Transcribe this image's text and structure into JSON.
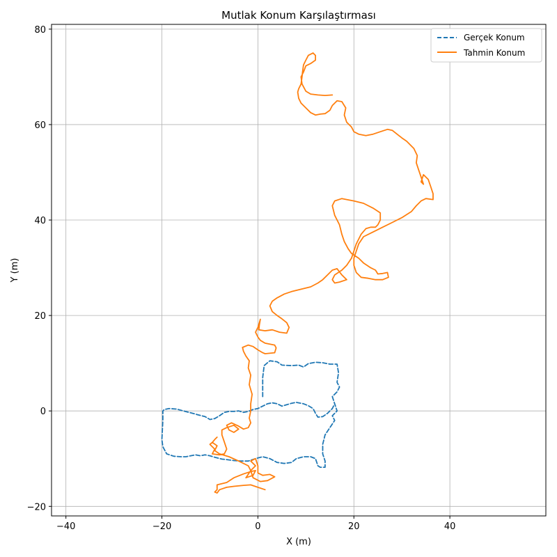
{
  "chart_data": {
    "type": "line",
    "title": "Mutlak Konum Karşılaştırması",
    "xlabel": "X (m)",
    "ylabel": "Y (m)",
    "xlim": [
      -43,
      60
    ],
    "ylim": [
      -22,
      81
    ],
    "xticks": [
      -40,
      -20,
      0,
      20,
      40
    ],
    "yticks": [
      -20,
      0,
      20,
      40,
      60,
      80
    ],
    "xtick_labels": [
      "−40",
      "−20",
      "0",
      "20",
      "40"
    ],
    "ytick_labels": [
      "−20",
      "0",
      "20",
      "40",
      "60",
      "80"
    ],
    "grid": true,
    "legend_position": "top-right",
    "series": [
      {
        "name": "Gerçek Konum",
        "color": "#1f77b4",
        "style": "dashed",
        "points": [
          [
            1,
            3
          ],
          [
            1,
            7
          ],
          [
            1.3,
            9.5
          ],
          [
            2.5,
            10.5
          ],
          [
            4,
            10.3
          ],
          [
            5,
            9.6
          ],
          [
            7,
            9.5
          ],
          [
            8.5,
            9.6
          ],
          [
            9.5,
            9.2
          ],
          [
            10.5,
            9.9
          ],
          [
            12,
            10.2
          ],
          [
            13.5,
            10.1
          ],
          [
            15,
            9.8
          ],
          [
            16.5,
            9.8
          ],
          [
            16.8,
            8
          ],
          [
            16.5,
            6
          ],
          [
            17,
            5
          ],
          [
            16.5,
            4
          ],
          [
            15.5,
            3
          ],
          [
            16,
            1.5
          ],
          [
            16.5,
            0
          ],
          [
            15.5,
            -1
          ],
          [
            16,
            -2
          ],
          [
            15,
            -3.5
          ],
          [
            14,
            -5
          ],
          [
            13.5,
            -7
          ],
          [
            13.5,
            -9
          ],
          [
            14,
            -10.5
          ],
          [
            14,
            -11.8
          ],
          [
            13,
            -11.8
          ],
          [
            12.5,
            -11.5
          ],
          [
            12,
            -10
          ],
          [
            11,
            -9.6
          ],
          [
            9.5,
            -9.6
          ],
          [
            8,
            -10
          ],
          [
            7,
            -10.8
          ],
          [
            5.5,
            -11
          ],
          [
            4,
            -10.8
          ],
          [
            2.5,
            -10
          ],
          [
            1,
            -9.6
          ],
          [
            -0.5,
            -10
          ],
          [
            -2,
            -10.5
          ],
          [
            -3.5,
            -10.5
          ],
          [
            -5,
            -10.4
          ],
          [
            -6.5,
            -10.2
          ],
          [
            -7.5,
            -10.1
          ],
          [
            -9,
            -9.7
          ],
          [
            -10,
            -9.4
          ],
          [
            -11,
            -9.2
          ],
          [
            -12,
            -9.4
          ],
          [
            -13,
            -9.2
          ],
          [
            -14,
            -9.4
          ],
          [
            -15,
            -9.6
          ],
          [
            -16,
            -9.6
          ],
          [
            -17.5,
            -9.5
          ],
          [
            -19,
            -9
          ],
          [
            -19.8,
            -7.5
          ],
          [
            -20,
            -6
          ],
          [
            -19.9,
            -4
          ],
          [
            -19.8,
            -2
          ],
          [
            -19.8,
            0
          ],
          [
            -19.5,
            0.3
          ],
          [
            -18.5,
            0.5
          ],
          [
            -17,
            0.4
          ],
          [
            -15.5,
            0
          ],
          [
            -14,
            -0.4
          ],
          [
            -12.5,
            -0.8
          ],
          [
            -11,
            -1.2
          ],
          [
            -10,
            -1.8
          ],
          [
            -9,
            -1.6
          ],
          [
            -8,
            -1
          ],
          [
            -7,
            -0.3
          ],
          [
            -6,
            -0.1
          ],
          [
            -5,
            -0.1
          ],
          [
            -4,
            0
          ],
          [
            -3,
            -0.3
          ],
          [
            -2,
            -0.1
          ],
          [
            -1,
            0.3
          ],
          [
            0,
            0.5
          ],
          [
            1,
            1
          ],
          [
            2,
            1.5
          ],
          [
            3,
            1.7
          ],
          [
            4,
            1.5
          ],
          [
            5,
            1
          ],
          [
            6,
            1.3
          ],
          [
            7,
            1.6
          ],
          [
            8,
            1.8
          ],
          [
            9.5,
            1.5
          ],
          [
            10.5,
            1.1
          ],
          [
            11.5,
            0.5
          ],
          [
            12,
            -0.5
          ],
          [
            12.5,
            -1.3
          ],
          [
            13.5,
            -1.2
          ],
          [
            14.5,
            -0.5
          ],
          [
            15.5,
            0.5
          ],
          [
            16,
            1.5
          ]
        ]
      },
      {
        "name": "Tahmin Konum",
        "color": "#ff7f0e",
        "style": "solid",
        "points": [
          [
            1.5,
            -16.5
          ],
          [
            0,
            -16
          ],
          [
            -1.5,
            -15.5
          ],
          [
            -3,
            -15.6
          ],
          [
            -5,
            -15.8
          ],
          [
            -6.5,
            -16
          ],
          [
            -8,
            -16.5
          ],
          [
            -8.5,
            -17.2
          ],
          [
            -9,
            -17
          ],
          [
            -8.5,
            -16.5
          ],
          [
            -8.5,
            -15.5
          ],
          [
            -6.5,
            -15
          ],
          [
            -5,
            -14
          ],
          [
            -3,
            -13.2
          ],
          [
            -1.5,
            -12.7
          ],
          [
            -0.5,
            -12.5
          ],
          [
            -1,
            -13.5
          ],
          [
            -2.5,
            -14
          ],
          [
            -1.5,
            -12.5
          ],
          [
            -0.5,
            -11.5
          ],
          [
            -1.5,
            -10.5
          ],
          [
            -0.5,
            -10
          ],
          [
            0,
            -11.5
          ],
          [
            0,
            -13
          ],
          [
            1,
            -13.5
          ],
          [
            2.5,
            -13.3
          ],
          [
            3.5,
            -13.8
          ],
          [
            2,
            -14.6
          ],
          [
            0.5,
            -14.8
          ],
          [
            -1,
            -14
          ],
          [
            -1.5,
            -12.5
          ],
          [
            -2,
            -11.5
          ],
          [
            -4,
            -10.5
          ],
          [
            -6,
            -9.6
          ],
          [
            -8,
            -9
          ],
          [
            -9,
            -8.3
          ],
          [
            -8.5,
            -7.3
          ],
          [
            -9.5,
            -6.6
          ],
          [
            -9,
            -6
          ],
          [
            -8.5,
            -5.5
          ],
          [
            -9,
            -6
          ],
          [
            -9.5,
            -6.6
          ],
          [
            -10,
            -7
          ],
          [
            -9.5,
            -7.5
          ],
          [
            -9,
            -8
          ],
          [
            -9.5,
            -9
          ],
          [
            -8,
            -9.2
          ],
          [
            -7,
            -9
          ],
          [
            -6.5,
            -8
          ],
          [
            -7,
            -6.5
          ],
          [
            -7.5,
            -5
          ],
          [
            -7.5,
            -4
          ],
          [
            -6.5,
            -3.5
          ],
          [
            -5,
            -3
          ],
          [
            -4,
            -3.8
          ],
          [
            -5,
            -4.5
          ],
          [
            -6,
            -4
          ],
          [
            -6.5,
            -3
          ],
          [
            -5.5,
            -2.5
          ],
          [
            -4,
            -3.2
          ],
          [
            -3,
            -3.8
          ],
          [
            -2,
            -3.5
          ],
          [
            -1.5,
            -2.5
          ],
          [
            -1.8,
            -1.5
          ],
          [
            -1.5,
            0
          ],
          [
            -1.5,
            1.5
          ],
          [
            -1.2,
            3.5
          ],
          [
            -1.8,
            5.5
          ],
          [
            -1.5,
            7.5
          ],
          [
            -2,
            9
          ],
          [
            -1.8,
            10.5
          ],
          [
            -2.5,
            11.5
          ],
          [
            -3,
            12.5
          ],
          [
            -3.2,
            13.3
          ],
          [
            -2,
            13.8
          ],
          [
            -1,
            13.5
          ],
          [
            0,
            12.8
          ],
          [
            1,
            12.2
          ],
          [
            1.5,
            12
          ],
          [
            3.5,
            12.2
          ],
          [
            3.8,
            13.2
          ],
          [
            3.5,
            13.8
          ],
          [
            2.5,
            14
          ],
          [
            1.5,
            14.2
          ],
          [
            0.5,
            14.8
          ],
          [
            0,
            15.5
          ],
          [
            -0.5,
            16.5
          ],
          [
            0,
            17.5
          ],
          [
            0.3,
            18.5
          ],
          [
            0.5,
            19.2
          ],
          [
            0.3,
            18
          ],
          [
            0.2,
            17
          ],
          [
            1.5,
            16.8
          ],
          [
            3,
            17
          ],
          [
            4.5,
            16.5
          ],
          [
            6,
            16.3
          ],
          [
            6.5,
            17.5
          ],
          [
            6,
            18.5
          ],
          [
            5,
            19.3
          ],
          [
            4,
            20
          ],
          [
            3,
            20.8
          ],
          [
            2.5,
            22
          ],
          [
            3,
            23
          ],
          [
            4,
            23.7
          ],
          [
            5.5,
            24.5
          ],
          [
            7,
            25
          ],
          [
            9,
            25.5
          ],
          [
            11,
            26
          ],
          [
            12.5,
            26.8
          ],
          [
            13.5,
            27.5
          ],
          [
            14.5,
            28.5
          ],
          [
            15.5,
            29.5
          ],
          [
            16.5,
            29.8
          ],
          [
            17.5,
            28.5
          ],
          [
            18.5,
            27.5
          ],
          [
            17,
            27
          ],
          [
            16,
            26.8
          ],
          [
            15.5,
            27.5
          ],
          [
            16,
            28.5
          ],
          [
            17.5,
            29.5
          ],
          [
            18.5,
            30.5
          ],
          [
            19.5,
            32
          ],
          [
            20,
            33.5
          ],
          [
            20.5,
            35
          ],
          [
            21.5,
            37
          ],
          [
            22.5,
            38.2
          ],
          [
            23.5,
            38.5
          ],
          [
            24.5,
            38.5
          ],
          [
            25,
            39
          ],
          [
            25.5,
            40
          ],
          [
            25.5,
            41.5
          ],
          [
            24,
            42.5
          ],
          [
            22,
            43.5
          ],
          [
            20,
            44
          ],
          [
            18.5,
            44.3
          ],
          [
            17.5,
            44.5
          ],
          [
            16,
            44
          ],
          [
            15.5,
            43
          ],
          [
            16,
            41
          ],
          [
            17,
            39
          ],
          [
            17.5,
            37
          ],
          [
            18,
            35.5
          ],
          [
            18.8,
            34
          ],
          [
            19.5,
            33
          ],
          [
            21,
            32
          ],
          [
            22,
            31
          ],
          [
            23.5,
            30
          ],
          [
            24.5,
            29.5
          ],
          [
            25,
            28.7
          ],
          [
            26,
            28.8
          ],
          [
            27,
            29
          ],
          [
            27.2,
            28
          ],
          [
            26,
            27.5
          ],
          [
            24.5,
            27.5
          ],
          [
            23,
            27.8
          ],
          [
            21.5,
            28
          ],
          [
            20.5,
            29
          ],
          [
            20,
            30.5
          ],
          [
            20,
            32
          ],
          [
            20.5,
            33.5
          ],
          [
            21,
            35
          ],
          [
            22,
            36.5
          ],
          [
            24,
            37.5
          ],
          [
            26,
            38.5
          ],
          [
            28,
            39.5
          ],
          [
            30,
            40.5
          ],
          [
            32,
            41.8
          ],
          [
            33,
            43
          ],
          [
            34,
            44
          ],
          [
            35,
            44.5
          ],
          [
            36.5,
            44.3
          ],
          [
            36.5,
            45.5
          ],
          [
            36,
            47
          ],
          [
            35.5,
            48.5
          ],
          [
            34.5,
            49.5
          ],
          [
            34,
            48
          ],
          [
            34.5,
            47.5
          ],
          [
            34,
            49
          ],
          [
            33.5,
            50.5
          ],
          [
            33,
            52
          ],
          [
            33.2,
            53.5
          ],
          [
            32.5,
            55
          ],
          [
            31,
            56.5
          ],
          [
            30,
            57.2
          ],
          [
            29,
            58
          ],
          [
            28,
            58.8
          ],
          [
            27,
            59
          ],
          [
            25.5,
            58.5
          ],
          [
            24,
            58
          ],
          [
            22.5,
            57.7
          ],
          [
            21,
            58
          ],
          [
            20,
            58.5
          ],
          [
            19.5,
            59.5
          ],
          [
            18.5,
            60.5
          ],
          [
            18,
            62
          ],
          [
            18.3,
            63.5
          ],
          [
            17.5,
            64.8
          ],
          [
            16.5,
            65
          ],
          [
            15.5,
            64
          ],
          [
            15,
            63
          ],
          [
            14,
            62.3
          ],
          [
            13,
            62.2
          ],
          [
            12,
            62
          ],
          [
            11,
            62.5
          ],
          [
            10,
            63.5
          ],
          [
            9,
            64.5
          ],
          [
            8.5,
            65.5
          ],
          [
            8.3,
            66.8
          ],
          [
            8.5,
            67.5
          ],
          [
            9,
            68.5
          ],
          [
            9.2,
            70
          ],
          [
            9.3,
            71
          ],
          [
            9.5,
            72.5
          ],
          [
            10,
            73.5
          ],
          [
            10.5,
            74.5
          ],
          [
            11.5,
            75
          ],
          [
            12,
            74.5
          ],
          [
            12,
            73.5
          ],
          [
            11,
            72.8
          ],
          [
            10,
            72.3
          ],
          [
            9.5,
            71
          ],
          [
            9,
            70
          ],
          [
            9.2,
            68.5
          ],
          [
            10,
            67
          ],
          [
            11,
            66.4
          ],
          [
            12.5,
            66.2
          ],
          [
            14,
            66.1
          ],
          [
            15.5,
            66.2
          ]
        ]
      }
    ]
  }
}
